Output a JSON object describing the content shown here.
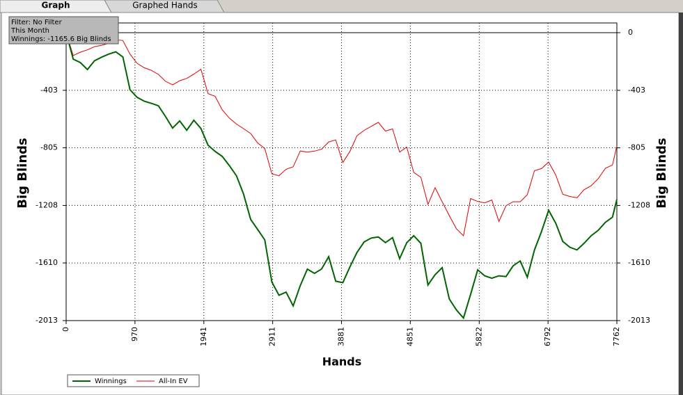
{
  "tabs": [
    "Graph",
    "Graphed Hands"
  ],
  "info": [
    "Filter: No Filter",
    "This Month",
    "Winnings: -1165.6 Big Blinds"
  ],
  "chart_data": {
    "type": "line",
    "x_label": "Hands",
    "y_label": "Big Blinds",
    "x": [
      0,
      100,
      200,
      300,
      400,
      500,
      600,
      700,
      800,
      900,
      1000,
      1100,
      1200,
      1300,
      1400,
      1500,
      1600,
      1700,
      1800,
      1900,
      2000,
      2100,
      2200,
      2300,
      2400,
      2500,
      2600,
      2700,
      2800,
      2900,
      3000,
      3100,
      3200,
      3300,
      3400,
      3500,
      3600,
      3700,
      3800,
      3900,
      4000,
      4100,
      4200,
      4300,
      4400,
      4500,
      4600,
      4700,
      4800,
      4900,
      5000,
      5100,
      5200,
      5300,
      5400,
      5500,
      5600,
      5700,
      5800,
      5900,
      6000,
      6100,
      6200,
      6300,
      6400,
      6500,
      6600,
      6700,
      6800,
      6900,
      7000,
      7100,
      7200,
      7300,
      7400,
      7500,
      7600,
      7700,
      7762
    ],
    "xlim": [
      0,
      7762
    ],
    "xticks": [
      0,
      970,
      1941,
      2911,
      3881,
      4851,
      5822,
      6792,
      7762
    ],
    "ylim": [
      -2013,
      68
    ],
    "yticks": [
      0,
      -403,
      -805,
      -1208,
      -1610,
      -2013
    ],
    "grid": true,
    "legend": "bottom-left",
    "series": [
      {
        "name": "Winnings",
        "color": "#006400",
        "values": [
          0,
          -185,
          -209,
          -258,
          -196,
          -171,
          -150,
          -134,
          -170,
          -399,
          -452,
          -479,
          -494,
          -511,
          -586,
          -667,
          -617,
          -682,
          -612,
          -670,
          -787,
          -830,
          -865,
          -929,
          -1000,
          -1128,
          -1305,
          -1376,
          -1449,
          -1743,
          -1836,
          -1814,
          -1910,
          -1768,
          -1653,
          -1683,
          -1652,
          -1566,
          -1738,
          -1748,
          -1637,
          -1536,
          -1463,
          -1436,
          -1428,
          -1468,
          -1433,
          -1580,
          -1469,
          -1420,
          -1473,
          -1764,
          -1692,
          -1643,
          -1862,
          -1938,
          -1995,
          -1830,
          -1658,
          -1700,
          -1717,
          -1700,
          -1705,
          -1630,
          -1596,
          -1710,
          -1520,
          -1390,
          -1242,
          -1332,
          -1459,
          -1500,
          -1519,
          -1473,
          -1420,
          -1382,
          -1326,
          -1290,
          -1165.6
        ]
      },
      {
        "name": "All-In EV",
        "color": "#e00000",
        "values": [
          0,
          -160,
          -136,
          -120,
          -98,
          -88,
          -75,
          -49,
          -55,
          -150,
          -214,
          -245,
          -263,
          -292,
          -340,
          -365,
          -336,
          -320,
          -290,
          -256,
          -426,
          -445,
          -540,
          -597,
          -639,
          -671,
          -705,
          -771,
          -810,
          -987,
          -1000,
          -955,
          -938,
          -827,
          -835,
          -828,
          -815,
          -764,
          -750,
          -908,
          -830,
          -720,
          -683,
          -655,
          -627,
          -688,
          -673,
          -835,
          -800,
          -978,
          -1011,
          -1200,
          -1084,
          -1182,
          -1279,
          -1370,
          -1420,
          -1160,
          -1180,
          -1190,
          -1170,
          -1320,
          -1210,
          -1182,
          -1182,
          -1133,
          -965,
          -950,
          -905,
          -995,
          -1130,
          -1145,
          -1155,
          -1098,
          -1070,
          -1020,
          -948,
          -925,
          -792
        ]
      }
    ]
  }
}
